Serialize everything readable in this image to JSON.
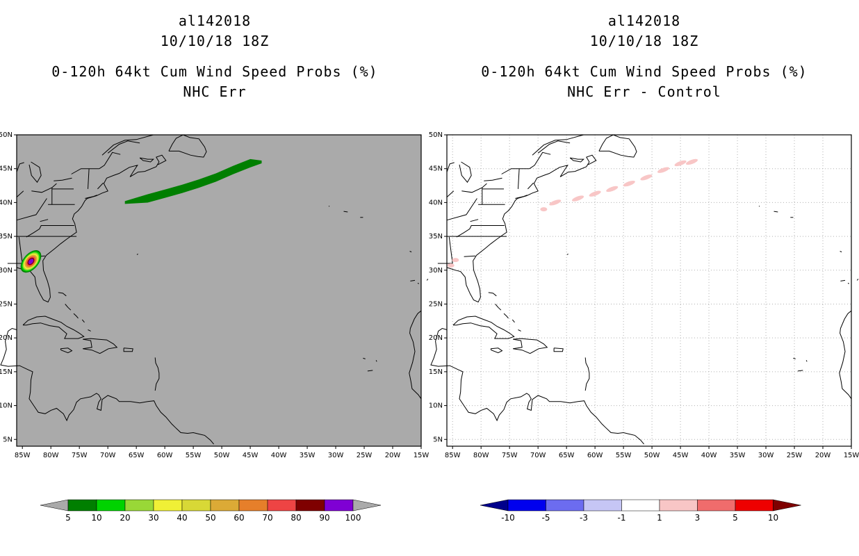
{
  "left_panel": {
    "title_line1": "al142018",
    "title_line2": "10/10/18 18Z",
    "title_line3": "0-120h 64kt Cum Wind Speed Probs (%)",
    "title_line4": "NHC Err",
    "background_color": "#aaaaaa",
    "colorbar": {
      "colors": [
        "#007f00",
        "#00d300",
        "#99d837",
        "#f0f036",
        "#d8d836",
        "#dcaa36",
        "#e67f2a",
        "#ee4444",
        "#7f0000",
        "#7f00d4"
      ],
      "under_color": "#aaaaaa",
      "over_color": "#aaaaaa",
      "labels": [
        "5",
        "10",
        "20",
        "30",
        "40",
        "50",
        "60",
        "70",
        "80",
        "90",
        "100"
      ]
    }
  },
  "right_panel": {
    "title_line1": "al142018",
    "title_line2": "10/10/18 18Z",
    "title_line3": "0-120h 64kt Cum Wind Speed Probs (%)",
    "title_line4": "NHC Err - Control",
    "background_color": "#ffffff",
    "colorbar": {
      "colors": [
        "#0000ee",
        "#6c6cf0",
        "#c6c6f5",
        "#ffffff",
        "#f8c6c6",
        "#f06c6c",
        "#ee0000"
      ],
      "under_color": "#00008b",
      "over_color": "#7f0000",
      "labels": [
        "-10",
        "-5",
        "-3",
        "-1",
        "1",
        "3",
        "5",
        "10"
      ]
    }
  },
  "map": {
    "lon_range": [
      -86,
      -15
    ],
    "lat_range": [
      4,
      50
    ],
    "lon_labels": [
      "85W",
      "80W",
      "75W",
      "70W",
      "65W",
      "60W",
      "55W",
      "50W",
      "45W",
      "40W",
      "35W",
      "30W",
      "25W",
      "20W",
      "15W"
    ],
    "lon_values": [
      -85,
      -80,
      -75,
      -70,
      -65,
      -60,
      -55,
      -50,
      -45,
      -40,
      -35,
      -30,
      -25,
      -20,
      -15
    ],
    "lat_labels": [
      "5N",
      "10N",
      "15N",
      "20N",
      "25N",
      "30N",
      "35N",
      "40N",
      "45N",
      "50N"
    ],
    "lat_values": [
      5,
      10,
      15,
      20,
      25,
      30,
      35,
      40,
      45,
      50
    ]
  }
}
